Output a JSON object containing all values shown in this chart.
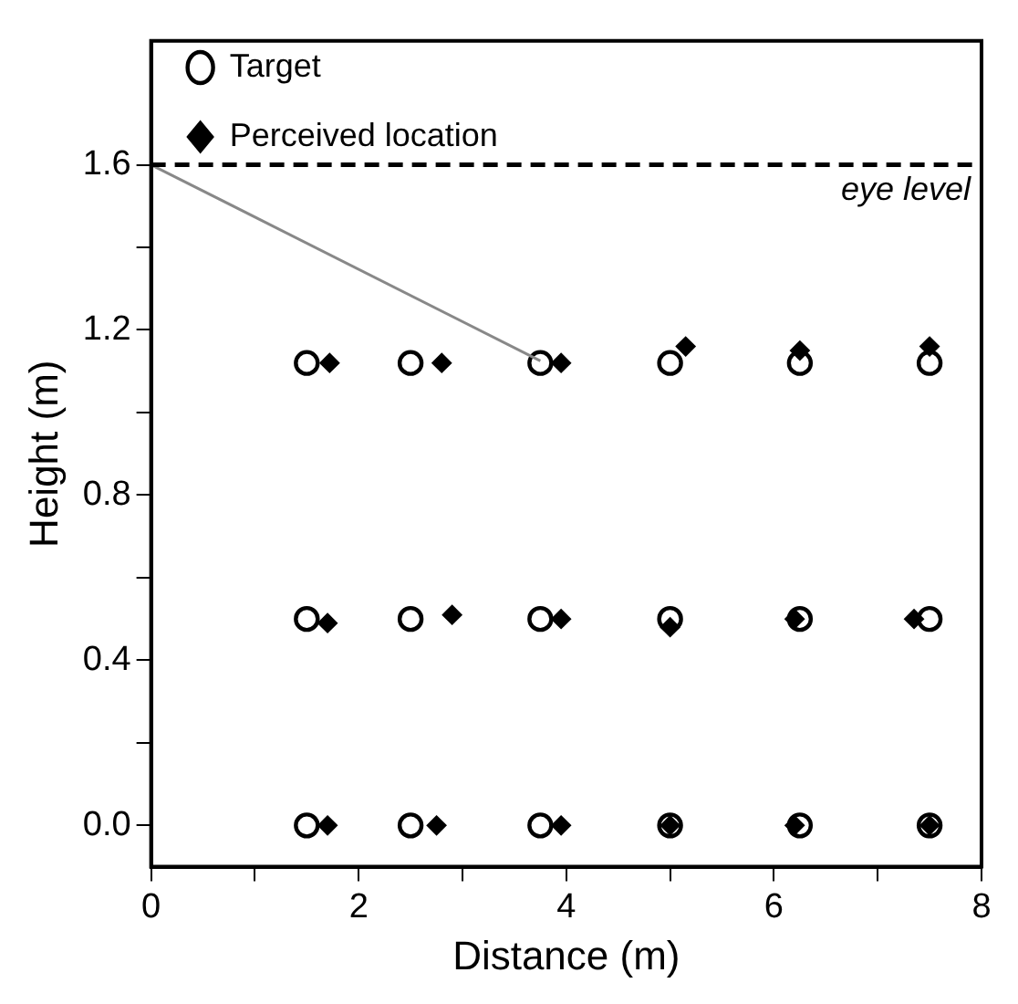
{
  "chart_data": {
    "type": "scatter",
    "xlabel": "Distance (m)",
    "ylabel": "Height (m)",
    "xlim": [
      0,
      8
    ],
    "ylim": [
      -0.1,
      1.9
    ],
    "xticks": [
      0,
      {
        "value": 1,
        "label": null
      },
      2,
      {
        "value": 3,
        "label": null
      },
      4,
      {
        "value": 5,
        "label": null
      },
      6,
      {
        "value": 7,
        "label": null
      },
      8
    ],
    "yticks": [
      "0.0",
      {
        "value": 0.2,
        "label": null
      },
      {
        "value": 0.4,
        "label": "0.4"
      },
      {
        "value": 0.6,
        "label": null
      },
      {
        "value": 0.8,
        "label": "0.8"
      },
      {
        "value": 1.0,
        "label": null
      },
      {
        "value": 1.2,
        "label": "1.2"
      },
      {
        "value": 1.4,
        "label": null
      },
      {
        "value": 1.6,
        "label": "1.6"
      }
    ],
    "grid": false,
    "legend": "top left",
    "series": [
      {
        "name": "Target",
        "color": "#000000",
        "marker": "circle",
        "x": [
          1.5,
          2.5,
          3.75,
          5,
          6.25,
          7.5,
          1.5,
          2.5,
          3.75,
          5,
          6.25,
          7.5,
          1.5,
          2.5,
          3.75,
          5,
          6.25,
          7.5
        ],
        "values": [
          1.12,
          1.12,
          1.12,
          1.12,
          1.12,
          1.12,
          0.5,
          0.5,
          0.5,
          0.5,
          0.5,
          0.5,
          0,
          0,
          0,
          0,
          0,
          0
        ]
      },
      {
        "name": "Perceived location",
        "color": "#000000",
        "marker": "diamond",
        "x": [
          1.72,
          2.8,
          3.95,
          5.15,
          6.25,
          7.5,
          1.7,
          2.9,
          3.95,
          5.0,
          6.2,
          7.35,
          1.7,
          2.75,
          3.95,
          5.0,
          6.2,
          7.5
        ],
        "values": [
          1.12,
          1.12,
          1.12,
          1.16,
          1.15,
          1.16,
          0.49,
          0.51,
          0.5,
          0.48,
          0.5,
          0.5,
          0,
          0,
          0,
          0,
          0,
          0
        ]
      },
      {
        "type": "line",
        "color": "#888888",
        "marker": "none",
        "x": [
          0,
          3.75
        ],
        "values": [
          1.6,
          1.125
        ]
      }
    ],
    "ref_lines": [
      {
        "axis": "y",
        "value": 1.6,
        "label": "eye level",
        "color": "#000000",
        "line_style": "dashed"
      }
    ]
  }
}
